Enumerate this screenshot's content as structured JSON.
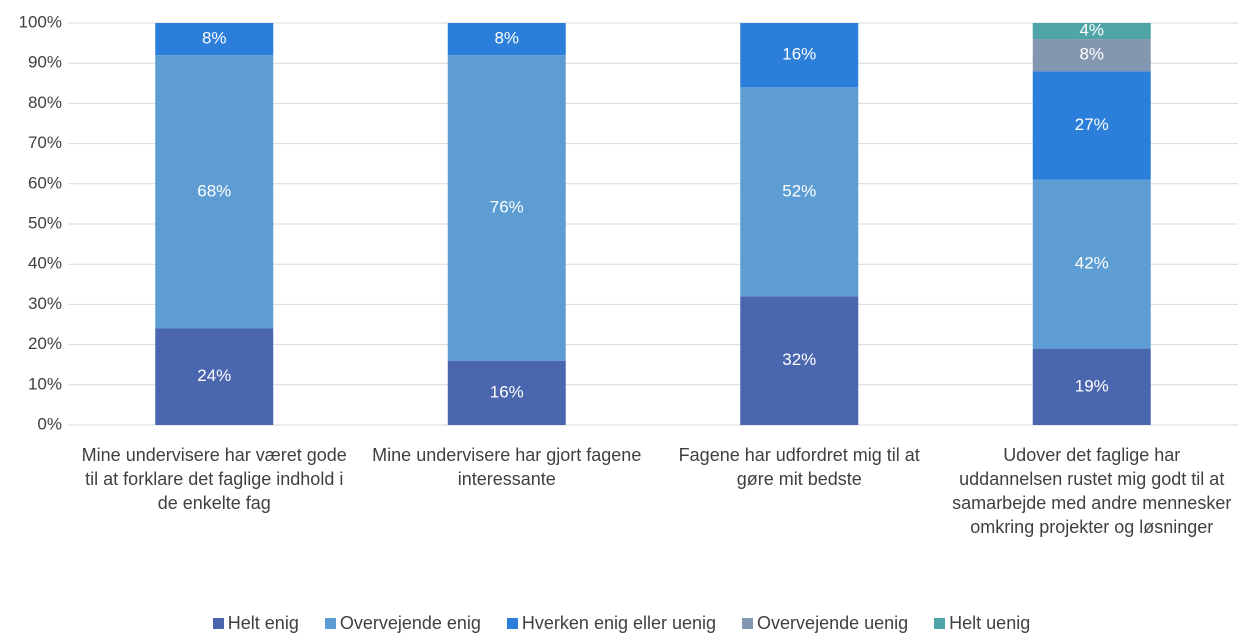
{
  "chart_data": {
    "type": "stacked_bar",
    "categories": [
      "Mine undervisere har været gode til at forklare det faglige indhold i de enkelte fag",
      "Mine undervisere har gjort fagene interessante",
      "Fagene har udfordret mig til at gøre mit bedste",
      "Udover det faglige har uddannelsen rustet mig godt til at samarbejde med andre mennesker omkring projekter og løsninger"
    ],
    "series": [
      {
        "name": "Helt enig",
        "color": "#4a66ae",
        "values": [
          24,
          16,
          32,
          19
        ],
        "value_labels": [
          "24%",
          "16%",
          "32%",
          "19%"
        ]
      },
      {
        "name": "Overvejende enig",
        "color": "#5e9dd3",
        "values": [
          68,
          76,
          52,
          42
        ],
        "value_labels": [
          "68%",
          "76%",
          "52%",
          "42%"
        ]
      },
      {
        "name": "Hverken enig eller uenig",
        "color": "#2b7ed9",
        "values": [
          8,
          8,
          16,
          27
        ],
        "value_labels": [
          "8%",
          "8%",
          "16%",
          "27%"
        ]
      },
      {
        "name": "Overvejende uenig",
        "color": "#8497b0",
        "values": [
          null,
          null,
          null,
          8
        ],
        "value_labels": [
          null,
          null,
          null,
          "8%"
        ]
      },
      {
        "name": "Helt uenig",
        "color": "#4fa4a8",
        "values": [
          null,
          null,
          null,
          4
        ],
        "value_labels": [
          null,
          null,
          null,
          "4%"
        ]
      }
    ],
    "ylim": [
      0,
      100
    ],
    "yticks": [
      {
        "value": 0,
        "label": "0%"
      },
      {
        "value": 10,
        "label": "10%"
      },
      {
        "value": 20,
        "label": "20%"
      },
      {
        "value": 30,
        "label": "30%"
      },
      {
        "value": 40,
        "label": "40%"
      },
      {
        "value": 50,
        "label": "50%"
      },
      {
        "value": 60,
        "label": "60%"
      },
      {
        "value": 70,
        "label": "70%"
      },
      {
        "value": 80,
        "label": "80%"
      },
      {
        "value": 90,
        "label": "90%"
      },
      {
        "value": 100,
        "label": "100%"
      }
    ],
    "grid": true,
    "legend": "bottom"
  }
}
